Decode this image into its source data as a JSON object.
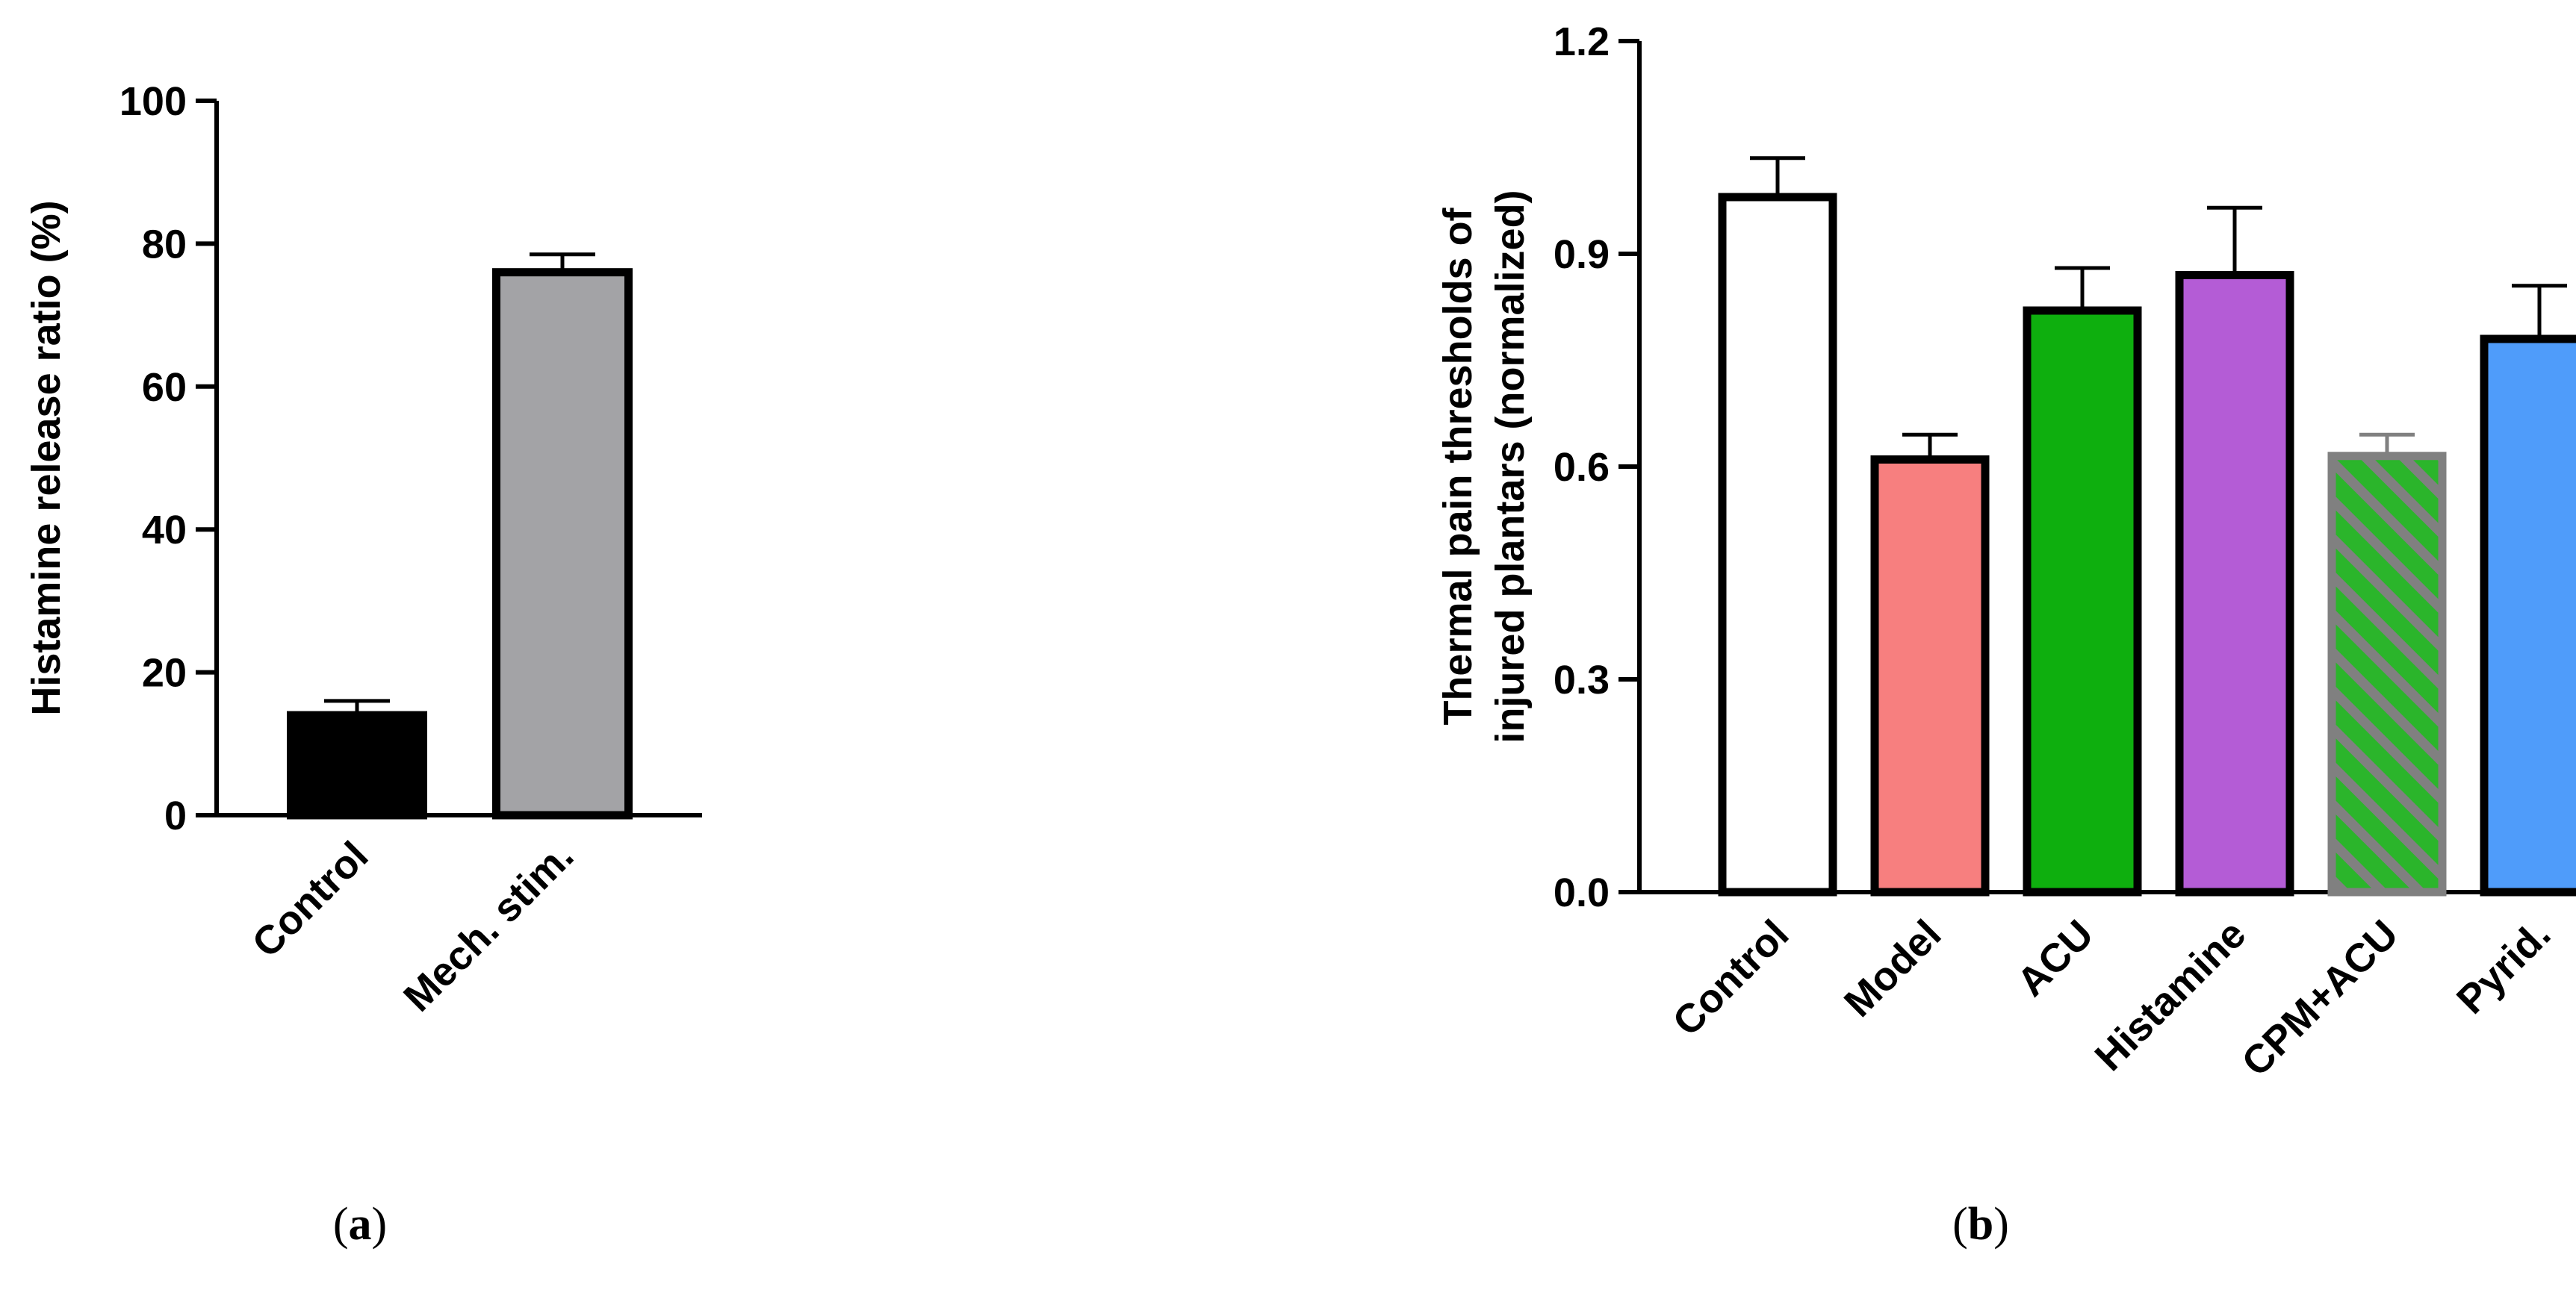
{
  "chart_data": [
    {
      "type": "bar",
      "panel": "a",
      "categories": [
        "Control",
        "Mech. stim."
      ],
      "values": [
        14,
        76
      ],
      "errors": [
        2,
        2.5
      ],
      "colors": [
        "#000000",
        "#a3a3a6"
      ],
      "patterns": [
        "solid",
        "solid"
      ],
      "ylabel": "Histamine release ratio (%)",
      "ylabel_lines": [
        "Histamine release ratio (%)"
      ],
      "ylim": [
        0,
        100
      ],
      "yticks": [
        "0",
        "20",
        "40",
        "60",
        "80",
        "100"
      ],
      "ytick_values": [
        0,
        20,
        40,
        60,
        80,
        100
      ],
      "grid": false
    },
    {
      "type": "bar",
      "panel": "b",
      "categories": [
        "Control",
        "Model",
        "ACU",
        "Histamine",
        "CPM+ACU",
        "Pyrid."
      ],
      "values": [
        0.98,
        0.61,
        0.82,
        0.87,
        0.615,
        0.78
      ],
      "errors": [
        0.055,
        0.035,
        0.06,
        0.095,
        0.03,
        0.075
      ],
      "colors": [
        "#ffffff",
        "#f77f7f",
        "#0eaf0e",
        "#b45cd6",
        "#2bb52b",
        "#4f9cfa"
      ],
      "patterns": [
        "solid",
        "solid",
        "solid",
        "solid",
        "hatch",
        "solid"
      ],
      "ylabel": "Thermal pain thresholds of injured plantars (normalized)",
      "ylabel_lines": [
        "Thermal pain thresholds of",
        "injured plantars (normalized)"
      ],
      "ylim": [
        0,
        1.2
      ],
      "yticks": [
        "0.0",
        "0.3",
        "0.6",
        "0.9",
        "1.2"
      ],
      "ytick_values": [
        0,
        0.3,
        0.6,
        0.9,
        1.2
      ],
      "grid": false
    }
  ],
  "panel_labels": {
    "a": {
      "open": "(",
      "letter": "a",
      "close": ")"
    },
    "b": {
      "open": "(",
      "letter": "b",
      "close": ")"
    }
  }
}
